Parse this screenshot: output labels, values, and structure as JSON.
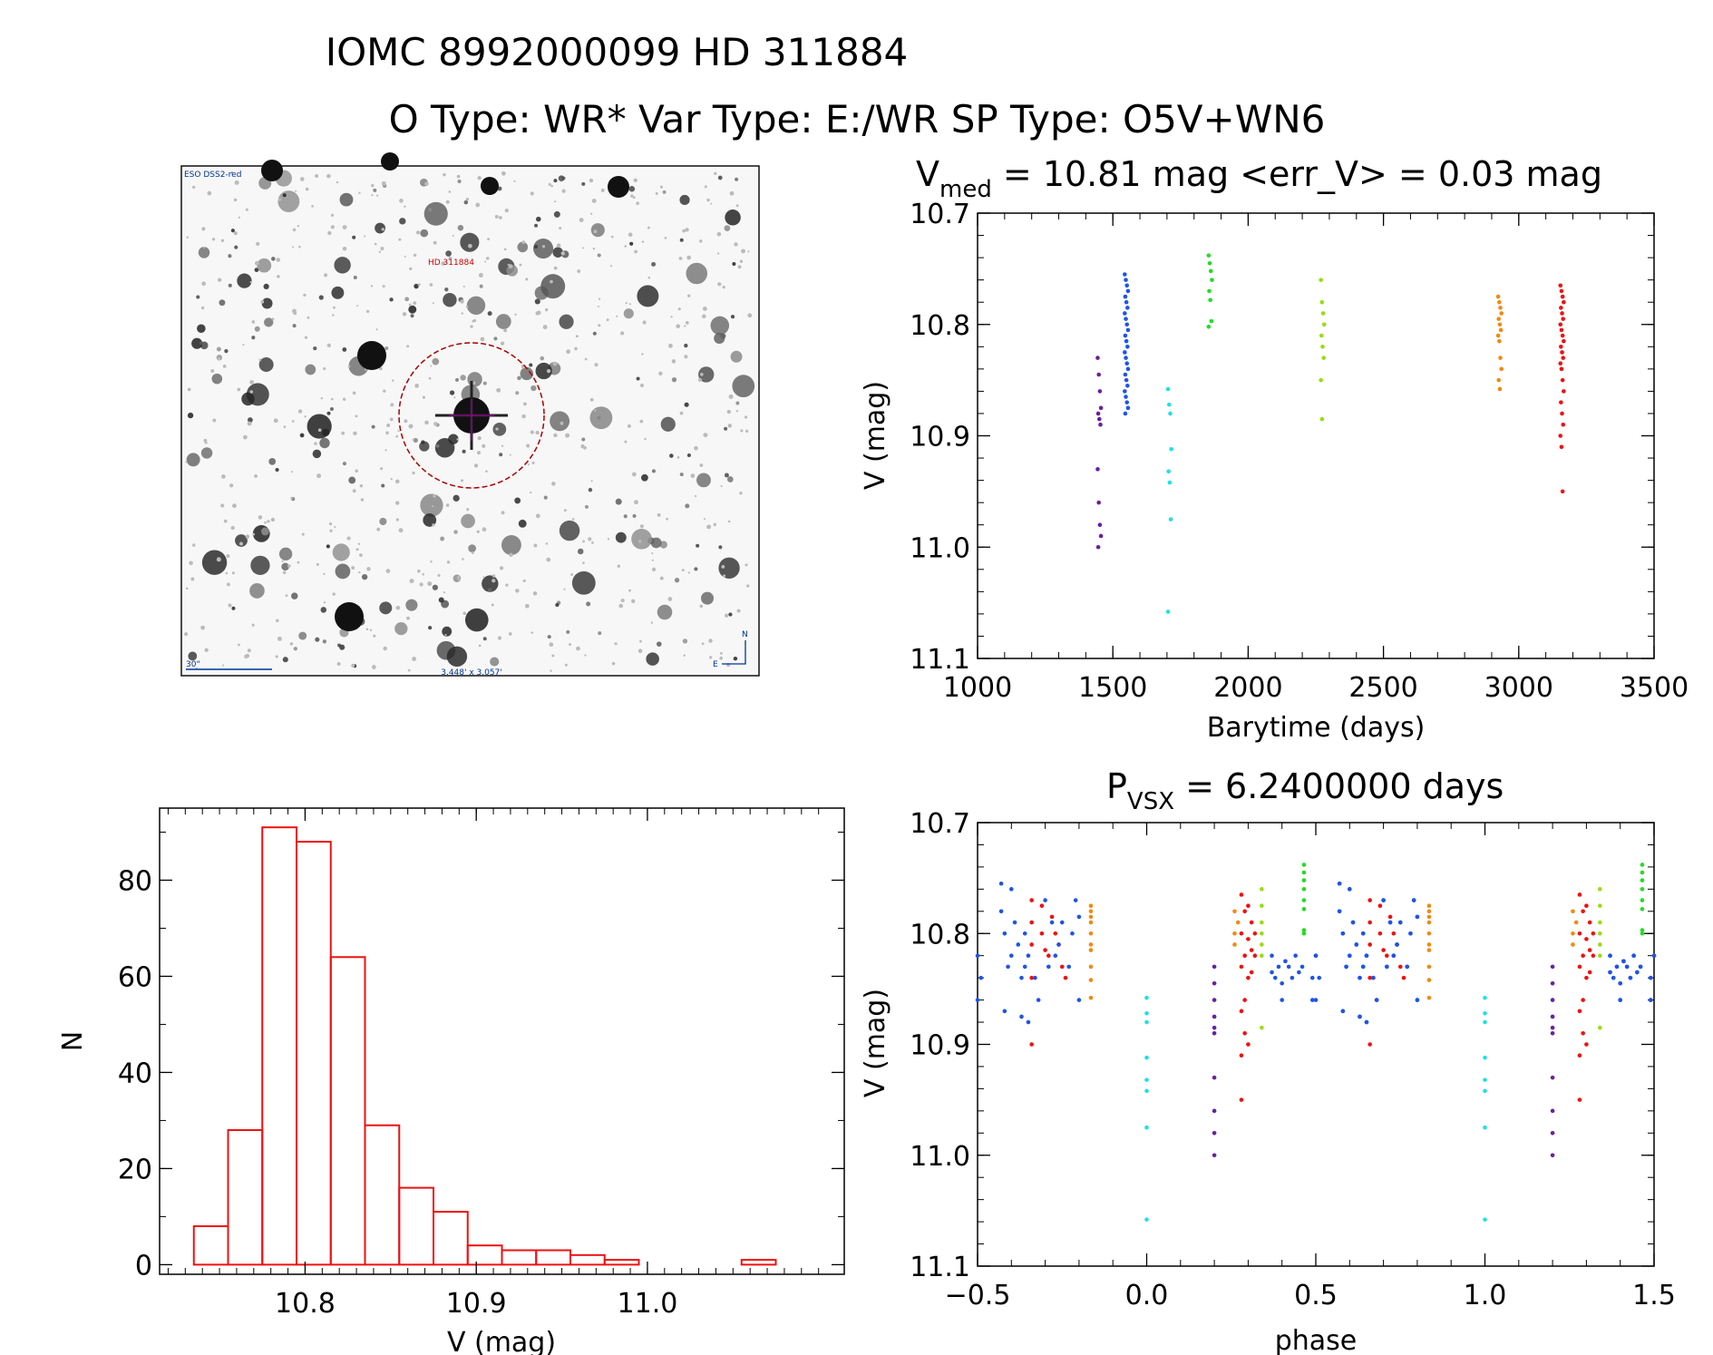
{
  "header": {
    "line1": "IOMC 8992000099    HD 311884",
    "line2": "O Type: WR*  Var Type: E:/WR  SP Type: O5V+WN6"
  },
  "finder": {
    "survey_label": "ESO DSS2-red",
    "target_label": "HD 311884",
    "scale_label": "30\"",
    "fov_label": "3.448' x 3.057'",
    "compass_n": "N",
    "compass_e": "E"
  },
  "colors": {
    "purple": "#6a1fa0",
    "blue": "#1f54e8",
    "cyan": "#1fe0e8",
    "green": "#22dd22",
    "yellowgreen": "#99dd11",
    "orange": "#f08a10",
    "red": "#ee1111",
    "hist": "#ee1111"
  },
  "chart_data": [
    {
      "id": "lightcurve",
      "type": "scatter",
      "title_main": "V",
      "title_sub": "med",
      "title_rest": " = 10.81 mag <err_V> = 0.03 mag",
      "xlabel": "Barytime (days)",
      "ylabel": "V (mag)",
      "xlim": [
        1000,
        3500
      ],
      "ylim": [
        10.7,
        11.1
      ],
      "y_inverted": true,
      "xticks": [
        1000,
        1500,
        2000,
        2500,
        3000,
        3500
      ],
      "xtick_labels": [
        "1000",
        "1500",
        "2000",
        "2500",
        "3000",
        "3500"
      ],
      "yticks": [
        10.7,
        10.8,
        10.9,
        11.0,
        11.1
      ],
      "ytick_labels": [
        "10.7",
        "10.8",
        "10.9",
        "11.0",
        "11.1"
      ],
      "series": [
        {
          "name": "season1",
          "color": "purple",
          "x": 1450,
          "values": [
            10.83,
            10.845,
            10.86,
            10.875,
            10.88,
            10.885,
            10.89,
            10.93,
            10.96,
            10.98,
            10.99,
            11.0
          ]
        },
        {
          "name": "season2",
          "color": "blue",
          "x": 1550,
          "values": [
            10.755,
            10.76,
            10.765,
            10.77,
            10.775,
            10.78,
            10.785,
            10.79,
            10.795,
            10.8,
            10.805,
            10.81,
            10.815,
            10.82,
            10.825,
            10.83,
            10.835,
            10.84,
            10.845,
            10.85,
            10.855,
            10.86,
            10.865,
            10.87,
            10.875,
            10.88
          ]
        },
        {
          "name": "season3",
          "color": "cyan",
          "x": 1710,
          "values": [
            10.858,
            10.872,
            10.88,
            10.912,
            10.932,
            10.942,
            10.975,
            11.058
          ]
        },
        {
          "name": "season4",
          "color": "green",
          "x": 1860,
          "values": [
            10.738,
            10.745,
            10.752,
            10.76,
            10.77,
            10.778,
            10.797,
            10.802
          ]
        },
        {
          "name": "season5",
          "color": "yellowgreen",
          "x": 2275,
          "values": [
            10.76,
            10.78,
            10.79,
            10.8,
            10.81,
            10.82,
            10.83,
            10.85,
            10.885
          ]
        },
        {
          "name": "season6",
          "color": "orange",
          "x": 2930,
          "values": [
            10.775,
            10.78,
            10.785,
            10.79,
            10.795,
            10.8,
            10.805,
            10.81,
            10.815,
            10.83,
            10.84,
            10.85,
            10.858
          ]
        },
        {
          "name": "season7",
          "color": "red",
          "x": 3160,
          "values": [
            10.765,
            10.77,
            10.775,
            10.78,
            10.785,
            10.79,
            10.795,
            10.8,
            10.805,
            10.81,
            10.815,
            10.82,
            10.825,
            10.83,
            10.835,
            10.84,
            10.85,
            10.86,
            10.87,
            10.88,
            10.89,
            10.9,
            10.91,
            10.95
          ]
        }
      ]
    },
    {
      "id": "histogram",
      "type": "bar",
      "xlabel": "V (mag)",
      "ylabel": "N",
      "xlim": [
        10.715,
        11.115
      ],
      "ylim": [
        -2,
        95
      ],
      "bin_edges": [
        10.735,
        10.755,
        10.775,
        10.795,
        10.815,
        10.835,
        10.855,
        10.875,
        10.895,
        10.915,
        10.935,
        10.955,
        10.975,
        10.995,
        11.015,
        11.035,
        11.055,
        11.075
      ],
      "counts": [
        8,
        28,
        91,
        88,
        64,
        29,
        16,
        11,
        4,
        3,
        3,
        2,
        1,
        0,
        0,
        0,
        1
      ],
      "xticks": [
        10.8,
        10.9,
        11.0
      ],
      "xtick_labels": [
        "10.8",
        "10.9",
        "11.0"
      ],
      "yticks": [
        0,
        20,
        40,
        60,
        80
      ],
      "ytick_labels": [
        "0",
        "20",
        "40",
        "60",
        "80"
      ]
    },
    {
      "id": "phased",
      "type": "scatter",
      "title_main": "P",
      "title_sub": "VSX",
      "title_rest": " = 6.2400000 days",
      "xlabel": "phase",
      "ylabel": "V (mag)",
      "xlim": [
        -0.5,
        1.5
      ],
      "ylim": [
        10.7,
        11.1
      ],
      "y_inverted": true,
      "xticks": [
        -0.5,
        0.0,
        0.5,
        1.0,
        1.5
      ],
      "xtick_labels": [
        "−0.5",
        "0.0",
        "0.5",
        "1.0",
        "1.5"
      ],
      "yticks": [
        10.7,
        10.8,
        10.9,
        11.0,
        11.1
      ],
      "ytick_labels": [
        "10.7",
        "10.8",
        "10.9",
        "11.0",
        "11.1"
      ],
      "series": [
        {
          "name": "purple",
          "color": "purple",
          "points": [
            [
              0.2,
              10.83
            ],
            [
              0.2,
              10.845
            ],
            [
              0.2,
              10.86
            ],
            [
              0.2,
              10.875
            ],
            [
              0.2,
              10.885
            ],
            [
              0.2,
              10.89
            ],
            [
              0.2,
              10.93
            ],
            [
              0.2,
              10.96
            ],
            [
              0.2,
              10.98
            ],
            [
              0.2,
              11.0
            ]
          ]
        },
        {
          "name": "cyan",
          "color": "cyan",
          "points": [
            [
              0.0,
              10.858
            ],
            [
              0.0,
              10.872
            ],
            [
              0.0,
              10.88
            ],
            [
              0.0,
              10.912
            ],
            [
              0.0,
              10.932
            ],
            [
              0.0,
              10.942
            ],
            [
              0.0,
              10.975
            ],
            [
              0.0,
              11.058
            ]
          ]
        },
        {
          "name": "green",
          "color": "green",
          "points": [
            [
              0.465,
              10.738
            ],
            [
              0.465,
              10.745
            ],
            [
              0.465,
              10.752
            ],
            [
              0.465,
              10.76
            ],
            [
              0.465,
              10.77
            ],
            [
              0.465,
              10.778
            ],
            [
              0.465,
              10.797
            ],
            [
              0.465,
              10.8
            ]
          ]
        },
        {
          "name": "yellowgreen",
          "color": "yellowgreen",
          "points": [
            [
              0.34,
              10.76
            ],
            [
              0.34,
              10.775
            ],
            [
              0.34,
              10.79
            ],
            [
              0.34,
              10.8
            ],
            [
              0.34,
              10.81
            ],
            [
              0.34,
              10.82
            ],
            [
              0.34,
              10.885
            ]
          ]
        },
        {
          "name": "orange",
          "color": "orange",
          "points": [
            [
              -0.165,
              10.775
            ],
            [
              -0.165,
              10.78
            ],
            [
              -0.165,
              10.785
            ],
            [
              -0.165,
              10.79
            ],
            [
              -0.165,
              10.8
            ],
            [
              -0.165,
              10.81
            ],
            [
              -0.165,
              10.815
            ],
            [
              -0.165,
              10.83
            ],
            [
              -0.165,
              10.842
            ],
            [
              -0.165,
              10.858
            ],
            [
              0.26,
              10.78
            ],
            [
              0.26,
              10.8
            ],
            [
              0.26,
              10.81
            ],
            [
              0.27,
              10.79
            ]
          ]
        },
        {
          "name": "red",
          "color": "red",
          "points": [
            [
              -0.34,
              10.77
            ],
            [
              -0.34,
              10.79
            ],
            [
              -0.34,
              10.81
            ],
            [
              -0.34,
              10.84
            ],
            [
              -0.34,
              10.9
            ],
            [
              -0.31,
              10.775
            ],
            [
              -0.31,
              10.8
            ],
            [
              -0.3,
              10.815
            ],
            [
              -0.29,
              10.82
            ],
            [
              -0.28,
              10.785
            ],
            [
              -0.27,
              10.8
            ],
            [
              -0.26,
              10.81
            ],
            [
              -0.25,
              10.83
            ],
            [
              -0.24,
              10.84
            ],
            [
              0.28,
              10.765
            ],
            [
              0.28,
              10.8
            ],
            [
              0.28,
              10.83
            ],
            [
              0.28,
              10.87
            ],
            [
              0.28,
              10.91
            ],
            [
              0.28,
              10.95
            ],
            [
              0.29,
              10.78
            ],
            [
              0.29,
              10.82
            ],
            [
              0.29,
              10.86
            ],
            [
              0.29,
              10.89
            ],
            [
              0.3,
              10.775
            ],
            [
              0.3,
              10.805
            ],
            [
              0.3,
              10.84
            ],
            [
              0.3,
              10.9
            ],
            [
              0.31,
              10.79
            ],
            [
              0.31,
              10.815
            ],
            [
              0.31,
              10.835
            ],
            [
              0.32,
              10.8
            ],
            [
              0.32,
              10.82
            ]
          ]
        },
        {
          "name": "blue",
          "color": "blue",
          "points": [
            [
              -0.5,
              10.82
            ],
            [
              -0.5,
              10.86
            ],
            [
              -0.49,
              10.84
            ],
            [
              -0.43,
              10.755
            ],
            [
              -0.43,
              10.78
            ],
            [
              -0.42,
              10.8
            ],
            [
              -0.42,
              10.87
            ],
            [
              -0.41,
              10.83
            ],
            [
              -0.4,
              10.76
            ],
            [
              -0.4,
              10.82
            ],
            [
              -0.39,
              10.79
            ],
            [
              -0.38,
              10.81
            ],
            [
              -0.37,
              10.84
            ],
            [
              -0.37,
              10.875
            ],
            [
              -0.36,
              10.8
            ],
            [
              -0.36,
              10.83
            ],
            [
              -0.35,
              10.82
            ],
            [
              -0.35,
              10.88
            ],
            [
              -0.33,
              10.84
            ],
            [
              -0.32,
              10.86
            ],
            [
              -0.3,
              10.77
            ],
            [
              -0.29,
              10.83
            ],
            [
              -0.28,
              10.79
            ],
            [
              -0.27,
              10.82
            ],
            [
              -0.26,
              10.81
            ],
            [
              -0.25,
              10.79
            ],
            [
              -0.23,
              10.83
            ],
            [
              -0.22,
              10.8
            ],
            [
              -0.21,
              10.77
            ],
            [
              -0.2,
              10.785
            ],
            [
              -0.2,
              10.86
            ],
            [
              0.37,
              10.835
            ],
            [
              0.37,
              10.82
            ],
            [
              0.38,
              10.84
            ],
            [
              0.39,
              10.83
            ],
            [
              0.4,
              10.845
            ],
            [
              0.4,
              10.86
            ],
            [
              0.41,
              10.825
            ],
            [
              0.42,
              10.83
            ],
            [
              0.43,
              10.84
            ],
            [
              0.44,
              10.82
            ],
            [
              0.45,
              10.835
            ],
            [
              0.46,
              10.83
            ],
            [
              0.49,
              10.84
            ],
            [
              0.49,
              10.86
            ],
            [
              0.5,
              10.82
            ],
            [
              0.57,
              10.755
            ],
            [
              0.57,
              10.78
            ],
            [
              0.58,
              10.8
            ],
            [
              0.58,
              10.87
            ],
            [
              0.59,
              10.83
            ],
            [
              0.6,
              10.76
            ],
            [
              0.6,
              10.82
            ],
            [
              0.61,
              10.79
            ],
            [
              0.62,
              10.81
            ],
            [
              0.63,
              10.84
            ],
            [
              0.63,
              10.875
            ],
            [
              0.64,
              10.8
            ],
            [
              0.64,
              10.83
            ],
            [
              0.65,
              10.82
            ],
            [
              0.65,
              10.88
            ],
            [
              0.67,
              10.84
            ],
            [
              0.68,
              10.86
            ],
            [
              0.7,
              10.77
            ],
            [
              0.71,
              10.83
            ],
            [
              0.72,
              10.79
            ],
            [
              0.73,
              10.82
            ],
            [
              0.74,
              10.81
            ],
            [
              0.75,
              10.79
            ],
            [
              0.77,
              10.83
            ],
            [
              0.78,
              10.8
            ],
            [
              0.79,
              10.77
            ],
            [
              0.8,
              10.785
            ],
            [
              0.8,
              10.86
            ],
            [
              1.37,
              10.835
            ],
            [
              1.37,
              10.82
            ],
            [
              1.38,
              10.84
            ],
            [
              1.39,
              10.83
            ],
            [
              1.4,
              10.845
            ],
            [
              1.4,
              10.86
            ],
            [
              1.41,
              10.825
            ],
            [
              1.42,
              10.83
            ],
            [
              1.43,
              10.84
            ],
            [
              1.44,
              10.82
            ],
            [
              1.45,
              10.835
            ],
            [
              1.46,
              10.83
            ],
            [
              1.49,
              10.84
            ],
            [
              1.49,
              10.86
            ],
            [
              1.5,
              10.82
            ]
          ]
        }
      ],
      "repeat_offsets": [
        1.0
      ]
    }
  ]
}
